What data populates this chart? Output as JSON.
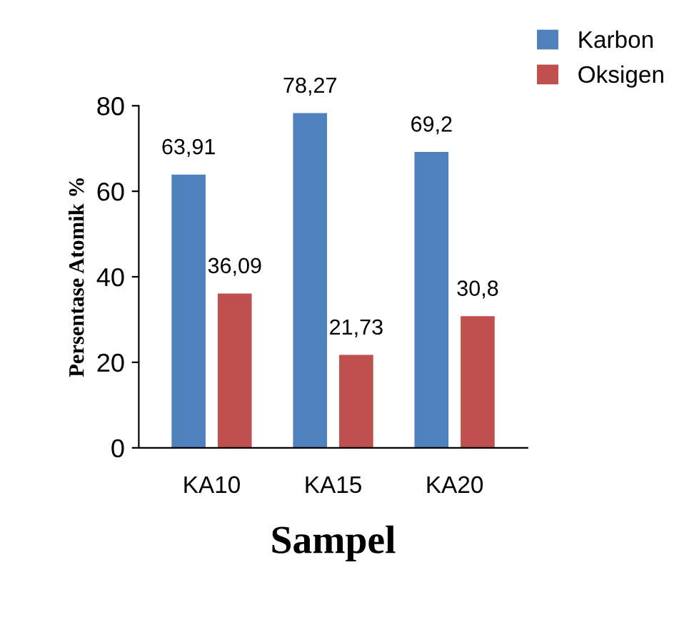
{
  "chart_data": {
    "type": "bar",
    "xlabel": "Sampel",
    "ylabel": "Persentase Atomik %",
    "categories": [
      "KA10",
      "KA15",
      "KA20"
    ],
    "series": [
      {
        "name": "Karbon",
        "color": "#4f81bd",
        "values": [
          63.91,
          78.27,
          69.2
        ],
        "value_labels": [
          "63,91",
          "78,27",
          "69,2"
        ]
      },
      {
        "name": "Oksigen",
        "color": "#c0504d",
        "values": [
          36.09,
          21.73,
          30.8
        ],
        "value_labels": [
          "36,09",
          "21,73",
          "30,8"
        ]
      }
    ],
    "ylim": [
      0,
      80
    ],
    "yticks": [
      0,
      20,
      40,
      60,
      80
    ],
    "grid": false,
    "legend": "top right"
  }
}
